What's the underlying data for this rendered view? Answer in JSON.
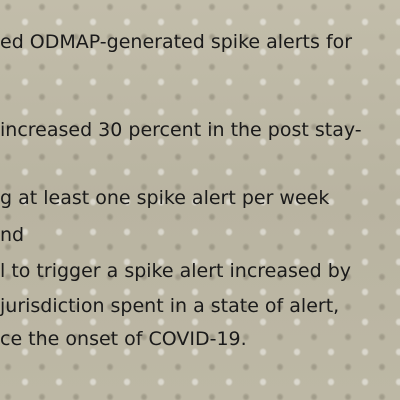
{
  "document": {
    "lines": [
      "ed ODMAP-generated spike alerts for",
      "increased 30 percent in the post stay-",
      "g at least one spike alert per week",
      "nd",
      "l to trigger a spike alert increased by",
      "jurisdiction spent in a state of alert,",
      "ce the onset of COVID-19."
    ]
  }
}
